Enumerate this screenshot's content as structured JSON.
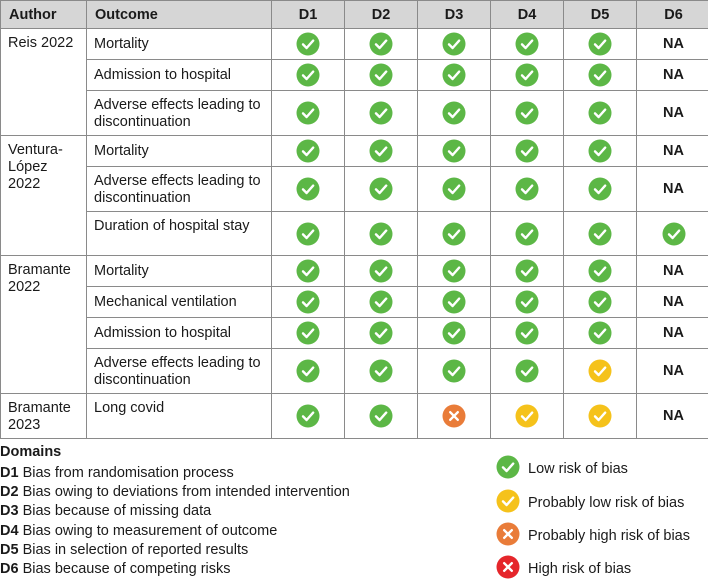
{
  "headers": {
    "author": "Author",
    "outcome": "Outcome",
    "domains": [
      "D1",
      "D2",
      "D3",
      "D4",
      "D5",
      "D6"
    ]
  },
  "na_label": "NA",
  "colors": {
    "low": "#5cb746",
    "prob_low": "#f5c21b",
    "prob_high": "#e97c39",
    "high": "#e5262b",
    "header_bg": "#d6d6d6"
  },
  "studies": [
    {
      "author": "Reis 2022",
      "rows": [
        {
          "outcome": "Mortality",
          "ratings": [
            "low",
            "low",
            "low",
            "low",
            "low",
            "NA"
          ]
        },
        {
          "outcome": "Admission to hospital",
          "ratings": [
            "low",
            "low",
            "low",
            "low",
            "low",
            "NA"
          ]
        },
        {
          "outcome": "Adverse effects leading to discontinuation",
          "ratings": [
            "low",
            "low",
            "low",
            "low",
            "low",
            "NA"
          ]
        }
      ]
    },
    {
      "author": "Ventura-López 2022",
      "rows": [
        {
          "outcome": "Mortality",
          "ratings": [
            "low",
            "low",
            "low",
            "low",
            "low",
            "NA"
          ]
        },
        {
          "outcome": "Adverse effects leading to discontinuation",
          "ratings": [
            "low",
            "low",
            "low",
            "low",
            "low",
            "NA"
          ]
        },
        {
          "outcome": "Duration of hospital stay",
          "ratings": [
            "low",
            "low",
            "low",
            "low",
            "low",
            "low"
          ]
        }
      ]
    },
    {
      "author": "Bramante 2022",
      "rows": [
        {
          "outcome": "Mortality",
          "ratings": [
            "low",
            "low",
            "low",
            "low",
            "low",
            "NA"
          ]
        },
        {
          "outcome": "Mechanical ventilation",
          "ratings": [
            "low",
            "low",
            "low",
            "low",
            "low",
            "NA"
          ]
        },
        {
          "outcome": "Admission to hospital",
          "ratings": [
            "low",
            "low",
            "low",
            "low",
            "low",
            "NA"
          ]
        },
        {
          "outcome": "Adverse effects leading to discontinuation",
          "ratings": [
            "low",
            "low",
            "low",
            "low",
            "prob_low",
            "NA"
          ]
        }
      ]
    },
    {
      "author": "Bramante 2023",
      "rows": [
        {
          "outcome": "Long covid",
          "ratings": [
            "low",
            "low",
            "prob_high",
            "prob_low",
            "prob_low",
            "NA"
          ]
        }
      ]
    }
  ],
  "domains_legend": {
    "title": "Domains",
    "items": [
      {
        "code": "D1",
        "text": "Bias from randomisation process"
      },
      {
        "code": "D2",
        "text": "Bias owing to deviations from intended intervention"
      },
      {
        "code": "D3",
        "text": "Bias because of missing data"
      },
      {
        "code": "D4",
        "text": "Bias owing to measurement of outcome"
      },
      {
        "code": "D5",
        "text": "Bias in selection of reported results"
      },
      {
        "code": "D6",
        "text": "Bias because of competing risks"
      }
    ]
  },
  "risk_legend": [
    {
      "key": "low",
      "icon": "check-icon",
      "label": "Low risk of bias"
    },
    {
      "key": "prob_low",
      "icon": "check-icon",
      "label": "Probably low risk of bias"
    },
    {
      "key": "prob_high",
      "icon": "cross-icon",
      "label": "Probably high risk of bias"
    },
    {
      "key": "high",
      "icon": "cross-icon",
      "label": "High risk of bias"
    }
  ]
}
